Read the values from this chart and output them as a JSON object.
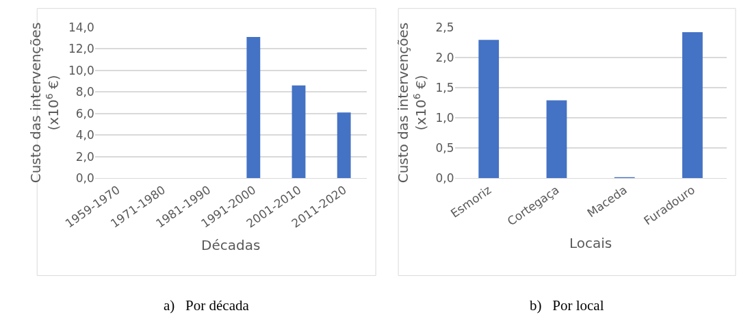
{
  "chart_data": [
    {
      "type": "bar",
      "categories": [
        "1959-1970",
        "1971-1980",
        "1981-1990",
        "1991-2000",
        "2001-2010",
        "2011-2020"
      ],
      "values": [
        0,
        0,
        0,
        13.1,
        8.6,
        6.1
      ],
      "color": "#4472c4",
      "xlabel": "Décadas",
      "ylabel": "Custo das intervenções\n(x10$^{6}$ €)",
      "ylim": [
        0,
        14
      ],
      "yticks": [
        {
          "value": 0,
          "label": "0,0"
        },
        {
          "value": 2,
          "label": "2,0"
        },
        {
          "value": 4,
          "label": "4,0"
        },
        {
          "value": 6,
          "label": "6,0"
        },
        {
          "value": 8,
          "label": "8,0"
        },
        {
          "value": 10,
          "label": "10,0"
        },
        {
          "value": 12,
          "label": "12,0"
        },
        {
          "value": 14,
          "label": "14,0"
        }
      ],
      "grid": "y",
      "annotations": [
        "a)   Por década"
      ]
    },
    {
      "type": "bar",
      "categories": [
        "Esmoriz",
        "Cortegaça",
        "Maceda",
        "Furadouro"
      ],
      "values": [
        2.29,
        1.29,
        0.01,
        2.42
      ],
      "color": "#4472c4",
      "xlabel": "Locais",
      "ylabel": "Custo das intervenções\n(x10$^{6}$ €)",
      "ylim": [
        0,
        2.5
      ],
      "yticks": [
        {
          "value": 0,
          "label": "0,0"
        },
        {
          "value": 0.5,
          "label": "0,5"
        },
        {
          "value": 1,
          "label": "1,0"
        },
        {
          "value": 1.5,
          "label": "1,5"
        },
        {
          "value": 2,
          "label": "2,0"
        },
        {
          "value": 2.5,
          "label": "2,5"
        }
      ],
      "grid": "y",
      "annotations": [
        "b)   Por local"
      ]
    }
  ]
}
